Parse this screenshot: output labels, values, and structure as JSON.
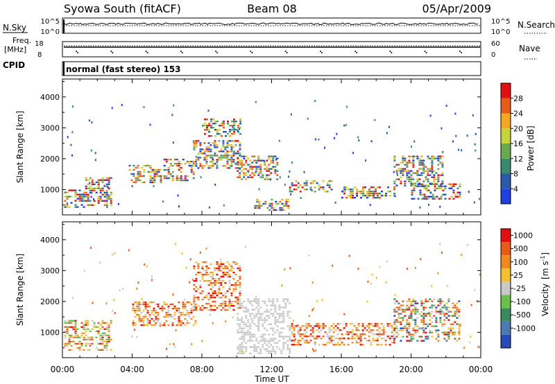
{
  "header": {
    "station": "Syowa South (fitACF)",
    "beam": "Beam 08",
    "date": "05/Apr/2009"
  },
  "top_panels": {
    "nsky": {
      "label": "N.Sky",
      "left_ticks": [
        "10^5",
        "10^0"
      ],
      "right_ticks": [
        "10^5",
        "10^0"
      ],
      "right_label": "N.Search"
    },
    "freq": {
      "label_line1": "Freq.",
      "label_line2": "[MHz]",
      "left_ticks": [
        "18",
        "8"
      ],
      "right_ticks": [
        "60",
        "0"
      ],
      "right_label": "Nave"
    },
    "cpid": {
      "label": "CPID",
      "value": "normal (fast stereo) 153"
    }
  },
  "chart_data": [
    {
      "type": "heatmap",
      "quantity": "power",
      "ylabel": "Slant Range [km]",
      "yticks": [
        1000,
        2000,
        3000,
        4000
      ],
      "ylim": [
        180,
        4580
      ],
      "xlim_hours": [
        0,
        24
      ],
      "colorbar": {
        "label": "Power [dB]",
        "ticks": [
          "4",
          "8",
          "12",
          "16",
          "20",
          "24",
          "28"
        ],
        "colors": [
          "#1f3fe0",
          "#2a5aa8",
          "#3a8a70",
          "#6aa84f",
          "#c8d23a",
          "#f5a623",
          "#e85a1a",
          "#e01010"
        ]
      },
      "echo_regions": [
        {
          "t0": 0.1,
          "t1": 1.2,
          "r0": 400,
          "r1": 1000,
          "value": "8-16"
        },
        {
          "t0": 1.3,
          "t1": 2.8,
          "r0": 500,
          "r1": 1400,
          "value": "16-28"
        },
        {
          "t0": 3.8,
          "t1": 5.6,
          "r0": 1200,
          "r1": 1800,
          "value": "12-24"
        },
        {
          "t0": 5.8,
          "t1": 7.6,
          "r0": 1300,
          "r1": 2000,
          "value": "16-28"
        },
        {
          "t0": 7.5,
          "t1": 10.2,
          "r0": 1700,
          "r1": 2600,
          "value": "8-16"
        },
        {
          "t0": 8.0,
          "t1": 10.2,
          "r0": 2700,
          "r1": 3300,
          "value": "4-12"
        },
        {
          "t0": 10.0,
          "t1": 12.3,
          "r0": 1300,
          "r1": 2100,
          "value": "4-12"
        },
        {
          "t0": 11.0,
          "t1": 13.0,
          "r0": 300,
          "r1": 700,
          "value": "16-28"
        },
        {
          "t0": 13.0,
          "t1": 15.5,
          "r0": 900,
          "r1": 1300,
          "value": "8-16"
        },
        {
          "t0": 16.0,
          "t1": 19.0,
          "r0": 700,
          "r1": 1100,
          "value": "8-16"
        },
        {
          "t0": 19.0,
          "t1": 21.8,
          "r0": 1100,
          "r1": 2100,
          "value": "12-24"
        },
        {
          "t0": 20.0,
          "t1": 22.8,
          "r0": 700,
          "r1": 1200,
          "value": "8-20"
        }
      ]
    },
    {
      "type": "heatmap",
      "quantity": "velocity",
      "xlabel": "Time UT",
      "ylabel": "Slant Range [km]",
      "xticks": [
        "00:00",
        "04:00",
        "08:00",
        "12:00",
        "16:00",
        "20:00",
        "00:00"
      ],
      "yticks": [
        1000,
        2000,
        3000,
        4000
      ],
      "ylim": [
        180,
        4580
      ],
      "xlim_hours": [
        0,
        24
      ],
      "colorbar": {
        "label_main": "Velocity",
        "label_units": "[m s",
        "label_exp": "-1",
        "label_close": "]",
        "ticks": [
          "1000",
          "500",
          "100",
          "25",
          "-25",
          "-100",
          "-500",
          "-1000"
        ],
        "colors": [
          "#2a4ab8",
          "#4a7ab0",
          "#3a8a60",
          "#6ac04a",
          "#c8c8c8",
          "#f5c030",
          "#f08a20",
          "#e85a1a",
          "#e01010"
        ]
      },
      "echo_regions": [
        {
          "t0": 0.1,
          "t1": 2.8,
          "r0": 400,
          "r1": 1400,
          "value": "mixed"
        },
        {
          "t0": 4.0,
          "t1": 7.6,
          "r0": 1200,
          "r1": 2000,
          "value": "-100 to -500"
        },
        {
          "t0": 7.5,
          "t1": 10.2,
          "r0": 1700,
          "r1": 3300,
          "value": "-25 to -500"
        },
        {
          "t0": 10.0,
          "t1": 13.0,
          "r0": 300,
          "r1": 2100,
          "value": "-25 to 25"
        },
        {
          "t0": 13.0,
          "t1": 19.0,
          "r0": 600,
          "r1": 1300,
          "value": "-100 to -1000"
        },
        {
          "t0": 19.0,
          "t1": 22.8,
          "r0": 700,
          "r1": 2100,
          "value": "100 to -500"
        }
      ]
    }
  ]
}
